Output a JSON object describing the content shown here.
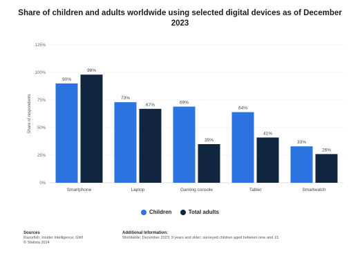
{
  "chart_data": {
    "type": "bar",
    "title": "Share of children and adults worldwide using selected digital devices as of December 2023",
    "ylabel": "Share of respondents",
    "xlabel": "",
    "categories": [
      "Smartphone",
      "Laptop",
      "Gaming console",
      "Tablet",
      "Smartwatch"
    ],
    "series": [
      {
        "name": "Children",
        "values": [
          90,
          73,
          69,
          64,
          33
        ],
        "labels": [
          "90%",
          "73%",
          "69%",
          "64%",
          "33%"
        ],
        "color": "#2c73e0"
      },
      {
        "name": "Total adults",
        "values": [
          98,
          67,
          35,
          41,
          26
        ],
        "labels": [
          "98%",
          "67%",
          "35%",
          "41%",
          "26%"
        ],
        "color": "#0f2540"
      }
    ],
    "yticks": [
      0,
      25,
      50,
      75,
      100,
      125
    ],
    "ytick_labels": [
      "0%",
      "25%",
      "50%",
      "75%",
      "100%",
      "125%"
    ],
    "ylim": [
      0,
      125
    ],
    "grid": true,
    "legend_position": "bottom"
  },
  "footer": {
    "sources_heading": "Sources",
    "sources_line1": "Razorfish; Insider Intelligence; GWI",
    "sources_line2": "© Statista 2024",
    "info_heading": "Additional Information:",
    "info_text": "Worldwide; December 2023; 9 years and older; surveyed children aged between nine and 13"
  }
}
